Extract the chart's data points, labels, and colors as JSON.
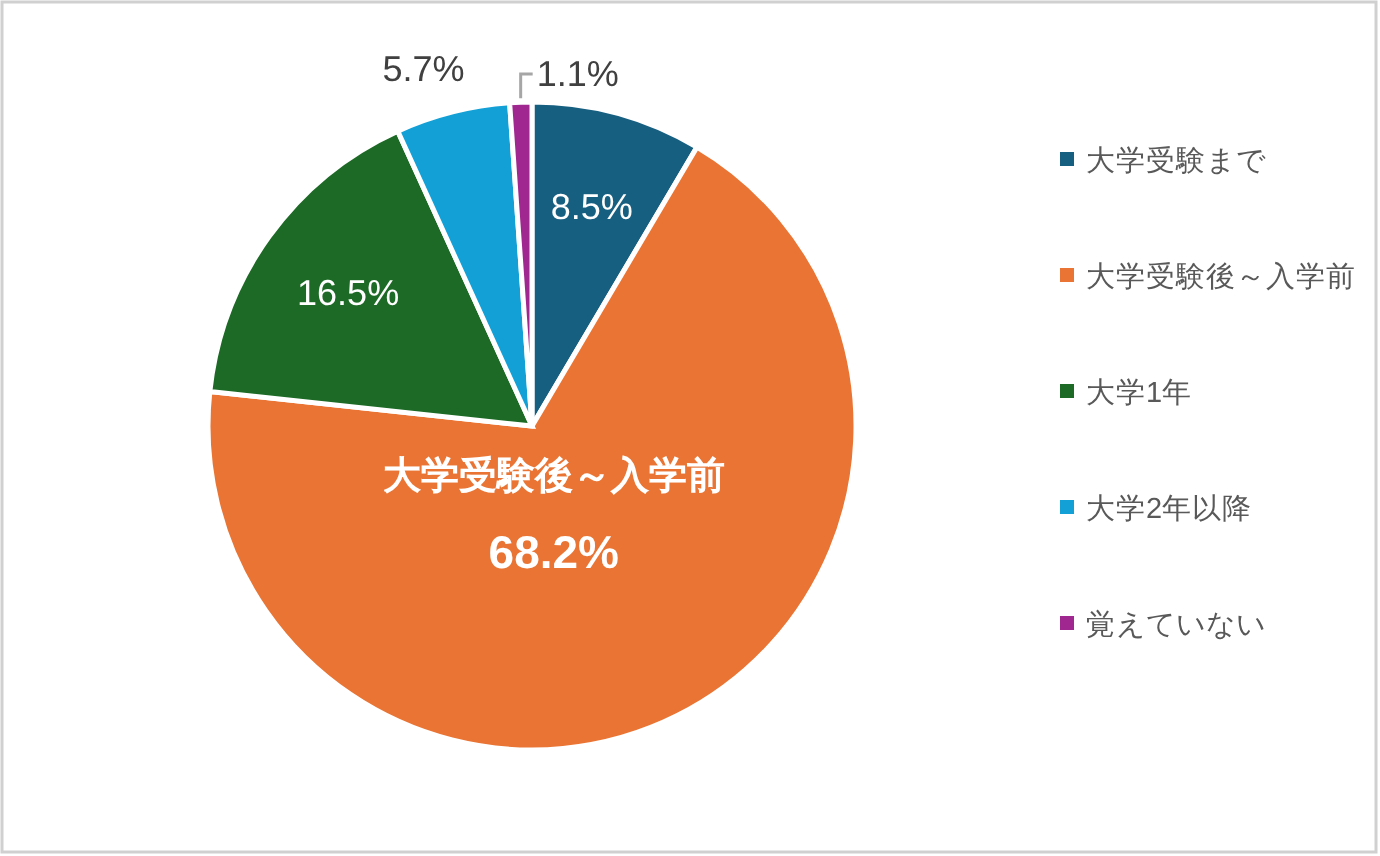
{
  "chart_data": {
    "type": "pie",
    "categories": [
      "大学受験まで",
      "大学受験後～入学前",
      "大学1年",
      "大学2年以降",
      "覚えていない"
    ],
    "values": [
      8.5,
      68.2,
      16.5,
      5.7,
      1.1
    ],
    "colors": [
      "#175f81",
      "#e97433",
      "#1c6a25",
      "#12a0d7",
      "#a0278f"
    ],
    "value_labels": [
      "8.5%",
      "68.2%",
      "16.5%",
      "5.7%",
      "1.1%"
    ],
    "legend": "right"
  }
}
